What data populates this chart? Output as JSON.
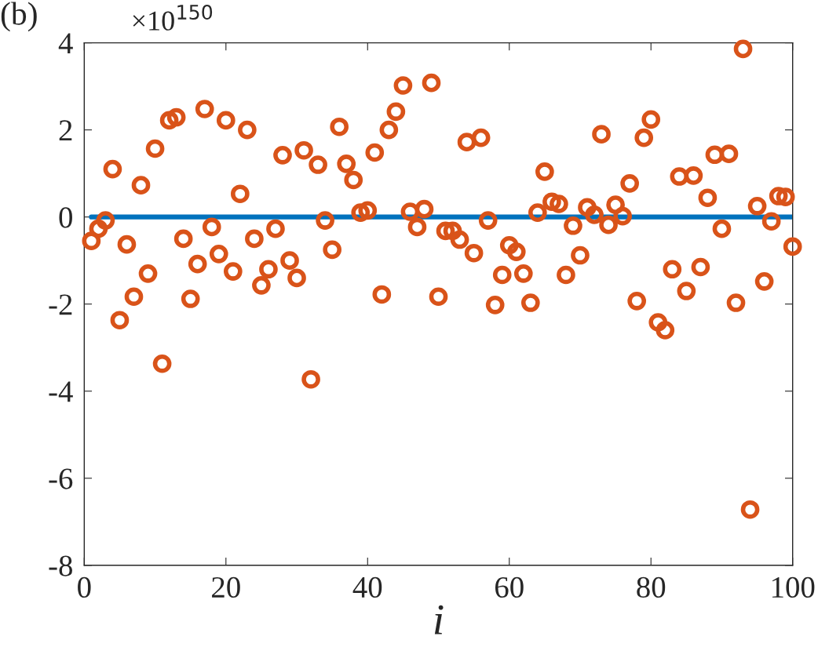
{
  "chart_data": {
    "type": "scatter",
    "xlabel": "i",
    "annotations": [
      "(b)",
      "×10$^{150}$"
    ],
    "xlim": [
      0,
      100
    ],
    "xticks": [
      0,
      20,
      40,
      60,
      80,
      100
    ],
    "ylim": [
      -8,
      4
    ],
    "yticks": [
      -8,
      -6,
      -4,
      -2,
      0,
      2,
      4
    ],
    "grid": false,
    "marker": "circle",
    "series": [
      {
        "type": "line",
        "color": "#0072bd",
        "x": [
          1,
          100
        ],
        "values": [
          0,
          0
        ],
        "line_style": "solid",
        "marker": "none"
      },
      {
        "color": "#d95319",
        "x": [
          1,
          2,
          3,
          4,
          5,
          6,
          7,
          8,
          9,
          10,
          11,
          12,
          13,
          14,
          15,
          16,
          17,
          18,
          19,
          20,
          21,
          22,
          23,
          24,
          25,
          26,
          27,
          28,
          29,
          30,
          31,
          32,
          33,
          34,
          35,
          36,
          37,
          38,
          39,
          40,
          41,
          42,
          43,
          44,
          45,
          46,
          47,
          48,
          49,
          50,
          51,
          52,
          53,
          54,
          55,
          56,
          57,
          58,
          59,
          60,
          61,
          62,
          63,
          64,
          65,
          66,
          67,
          68,
          69,
          70,
          71,
          72,
          73,
          74,
          75,
          76,
          77,
          78,
          79,
          80,
          81,
          82,
          83,
          84,
          85,
          86,
          87,
          88,
          89,
          90,
          91,
          92,
          93,
          94,
          95,
          96,
          97,
          98,
          99,
          100
        ],
        "values": [
          -0.55,
          -0.27,
          -0.08,
          1.1,
          -2.37,
          -0.63,
          -1.83,
          0.73,
          -1.3,
          1.57,
          -3.37,
          2.22,
          2.29,
          -0.5,
          -1.88,
          -1.08,
          2.48,
          -0.23,
          -0.85,
          2.22,
          -1.25,
          0.53,
          2.0,
          -0.5,
          -1.57,
          -1.2,
          -0.27,
          1.42,
          -1.0,
          -1.4,
          1.53,
          -3.73,
          1.2,
          -0.08,
          -0.75,
          2.07,
          1.22,
          0.85,
          0.1,
          0.15,
          1.48,
          -1.78,
          2.0,
          2.42,
          3.02,
          0.12,
          -0.23,
          0.18,
          3.08,
          -1.83,
          -0.32,
          -0.32,
          -0.52,
          1.72,
          -0.83,
          1.82,
          -0.08,
          -2.02,
          -1.33,
          -0.65,
          -0.8,
          -1.3,
          -1.97,
          0.1,
          1.04,
          0.35,
          0.3,
          -1.33,
          -0.2,
          -0.88,
          0.22,
          0.05,
          1.9,
          -0.18,
          0.28,
          0.02,
          0.77,
          -1.93,
          1.82,
          2.24,
          -2.42,
          -2.6,
          -1.2,
          0.93,
          -1.7,
          0.95,
          -1.15,
          0.44,
          1.43,
          -0.27,
          1.45,
          -1.97,
          3.86,
          -6.72,
          0.25,
          -1.48,
          -0.1,
          0.48,
          0.46,
          -0.68
        ]
      }
    ]
  }
}
